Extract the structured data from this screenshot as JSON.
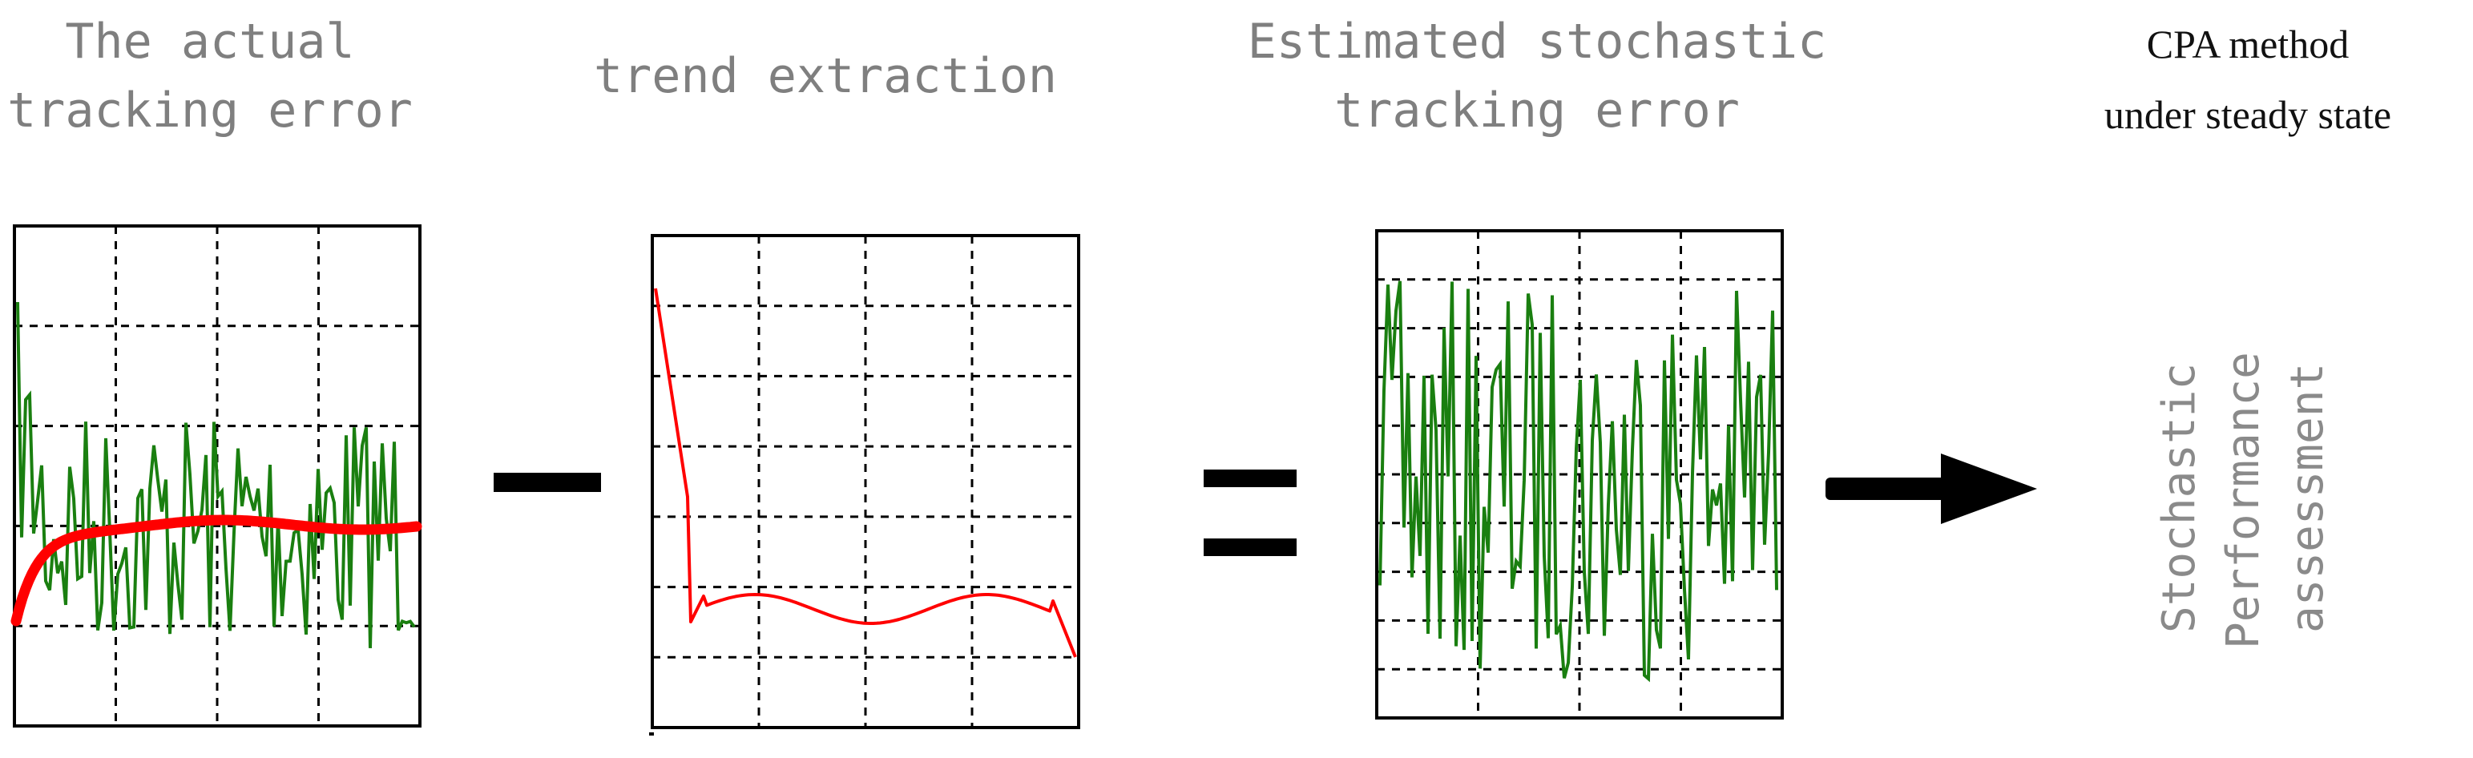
{
  "headers": {
    "actual": [
      "The actual",
      "tracking error"
    ],
    "trend": [
      "trend extraction"
    ],
    "estimated": [
      "Estimated stochastic",
      "tracking error"
    ],
    "cpa": [
      "CPA method",
      "under steady state"
    ]
  },
  "result_text": [
    "Stochastic",
    "Performance",
    "assessment"
  ],
  "colors": {
    "noise": "#1a7f10",
    "trend": "#ff0000",
    "grid": "#000000",
    "text_gray": "#7f7f7f"
  },
  "icons": [
    "minus-icon",
    "equals-icon",
    "arrow-right-icon"
  ]
}
